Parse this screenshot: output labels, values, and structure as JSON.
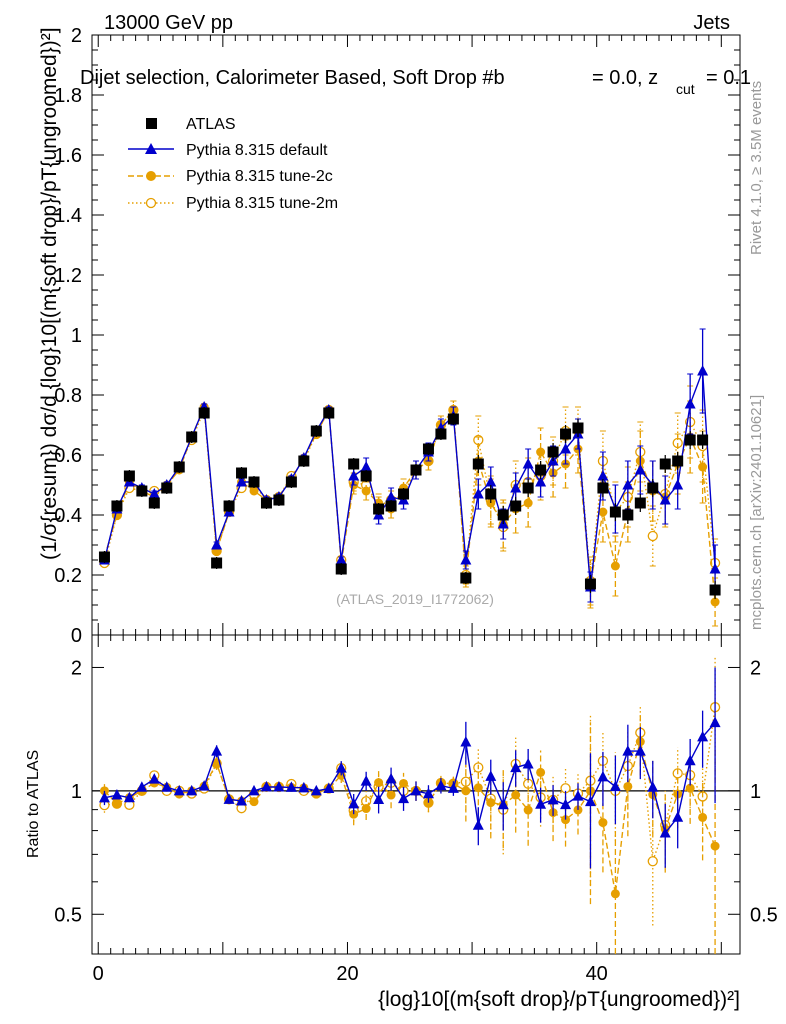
{
  "header": {
    "energy": "13000 GeV pp",
    "process": "Jets",
    "selection": "Dijet selection, Calorimeter Based, Soft Drop #b",
    "beta": "= 0.0, z",
    "cut": "cut",
    "zcut_value": "= 0.1"
  },
  "side": {
    "rivet": "Rivet 4.1.0, ≥ 3.5M events",
    "mcplots": "mcplots.cern.ch [arXiv:2401.10621]"
  },
  "watermark": "(ATLAS_2019_I1772062)",
  "ylabel_top": "(1/σ{resum}) dσ/d {log}10[(m{soft drop}/pT{ungroomed})²]",
  "ylabel_bottom": "Ratio to ATLAS",
  "xlabel": "{log}10[(m{soft drop}/pT{ungroomed})²]",
  "colors": {
    "atlas": "#000000",
    "default": "#0000cc",
    "tune": "#e69f00"
  },
  "chart_data": {
    "type": "scatter",
    "x": [
      0.5,
      1.5,
      2.5,
      3.5,
      4.5,
      5.5,
      6.5,
      7.5,
      8.5,
      9.5,
      10.5,
      11.5,
      12.5,
      13.5,
      14.5,
      15.5,
      16.5,
      17.5,
      18.5,
      19.5,
      20.5,
      21.5,
      22.5,
      23.5,
      24.5,
      25.5,
      26.5,
      27.5,
      28.5,
      29.5,
      30.5,
      31.5,
      32.5,
      33.5,
      34.5,
      35.5,
      36.5,
      37.5,
      38.5,
      39.5,
      40.5,
      41.5,
      42.5,
      43.5,
      44.5,
      45.5,
      46.5,
      47.5,
      48.5,
      49.5
    ],
    "xlim": [
      -0.5,
      51.5
    ],
    "xticks": [
      0,
      20,
      40
    ],
    "top_ylim": [
      0,
      2
    ],
    "top_yticks": [
      0,
      0.2,
      0.4,
      0.6,
      0.8,
      1,
      1.2,
      1.4,
      1.6,
      1.8,
      2
    ],
    "top_ytick_labels": [
      "0",
      "0.2",
      "0.4",
      "0.6",
      "0.8",
      "1",
      "1.2",
      "1.4",
      "1.6",
      "1.8",
      "2"
    ],
    "ratio_ylim": [
      0.4,
      2.4
    ],
    "ratio_yticks": [
      0.5,
      1,
      2
    ],
    "ratio_ytick_labels": [
      "0.5",
      "1",
      "2"
    ],
    "series": [
      {
        "name": "ATLAS",
        "key": "atlas",
        "values": [
          0.26,
          0.43,
          0.53,
          0.48,
          0.44,
          0.49,
          0.56,
          0.66,
          0.74,
          0.24,
          0.43,
          0.54,
          0.51,
          0.44,
          0.45,
          0.51,
          0.58,
          0.68,
          0.74,
          0.22,
          0.57,
          0.53,
          0.42,
          0.43,
          0.47,
          0.55,
          0.62,
          0.67,
          0.72,
          0.19,
          0.57,
          0.47,
          0.4,
          0.43,
          0.49,
          0.55,
          0.61,
          0.67,
          0.69,
          0.17,
          0.49,
          0.41,
          0.4,
          0.44,
          0.49,
          0.57,
          0.58,
          0.65,
          0.65,
          0.15
        ],
        "errors": [
          0.02,
          0.02,
          0.02,
          0.02,
          0.02,
          0.02,
          0.02,
          0.02,
          0.02,
          0.02,
          0.02,
          0.02,
          0.02,
          0.02,
          0.02,
          0.02,
          0.02,
          0.02,
          0.02,
          0.02,
          0.02,
          0.02,
          0.02,
          0.02,
          0.02,
          0.02,
          0.02,
          0.02,
          0.02,
          0.02,
          0.03,
          0.03,
          0.03,
          0.03,
          0.03,
          0.03,
          0.03,
          0.03,
          0.03,
          0.03,
          0.03,
          0.03,
          0.03,
          0.03,
          0.03,
          0.03,
          0.03,
          0.03,
          0.03,
          0.03
        ]
      },
      {
        "name": "Pythia 8.315 default",
        "key": "default",
        "values": [
          0.25,
          0.42,
          0.51,
          0.49,
          0.47,
          0.5,
          0.56,
          0.66,
          0.76,
          0.3,
          0.41,
          0.51,
          0.51,
          0.45,
          0.46,
          0.52,
          0.59,
          0.68,
          0.75,
          0.25,
          0.53,
          0.56,
          0.4,
          0.46,
          0.45,
          0.55,
          0.61,
          0.69,
          0.73,
          0.25,
          0.47,
          0.51,
          0.37,
          0.49,
          0.57,
          0.51,
          0.58,
          0.62,
          0.67,
          0.16,
          0.53,
          0.42,
          0.5,
          0.55,
          0.5,
          0.45,
          0.5,
          0.77,
          0.88,
          0.22
        ],
        "errors": [
          0.01,
          0.01,
          0.01,
          0.01,
          0.01,
          0.01,
          0.01,
          0.01,
          0.01,
          0.01,
          0.01,
          0.01,
          0.01,
          0.01,
          0.01,
          0.01,
          0.01,
          0.01,
          0.01,
          0.01,
          0.03,
          0.03,
          0.03,
          0.03,
          0.03,
          0.03,
          0.03,
          0.03,
          0.03,
          0.03,
          0.05,
          0.05,
          0.05,
          0.05,
          0.05,
          0.05,
          0.05,
          0.05,
          0.05,
          0.05,
          0.08,
          0.08,
          0.08,
          0.08,
          0.08,
          0.08,
          0.08,
          0.1,
          0.14,
          0.08
        ]
      },
      {
        "name": "Pythia 8.315 tune-2c",
        "key": "tune2c",
        "values": [
          0.26,
          0.4,
          0.51,
          0.48,
          0.46,
          0.5,
          0.55,
          0.66,
          0.76,
          0.28,
          0.41,
          0.51,
          0.48,
          0.45,
          0.46,
          0.52,
          0.59,
          0.67,
          0.75,
          0.24,
          0.5,
          0.48,
          0.44,
          0.42,
          0.49,
          0.55,
          0.58,
          0.7,
          0.75,
          0.19,
          0.58,
          0.44,
          0.37,
          0.42,
          0.44,
          0.61,
          0.54,
          0.57,
          0.62,
          0.17,
          0.41,
          0.23,
          0.41,
          0.58,
          0.48,
          0.46,
          0.57,
          0.66,
          0.56,
          0.11
        ],
        "errors": [
          0.01,
          0.01,
          0.01,
          0.01,
          0.01,
          0.01,
          0.01,
          0.01,
          0.01,
          0.01,
          0.01,
          0.01,
          0.01,
          0.01,
          0.01,
          0.01,
          0.01,
          0.01,
          0.01,
          0.01,
          0.03,
          0.03,
          0.03,
          0.03,
          0.03,
          0.03,
          0.03,
          0.03,
          0.03,
          0.03,
          0.08,
          0.08,
          0.08,
          0.08,
          0.08,
          0.08,
          0.08,
          0.08,
          0.08,
          0.08,
          0.1,
          0.1,
          0.1,
          0.1,
          0.1,
          0.1,
          0.1,
          0.12,
          0.12,
          0.08
        ]
      },
      {
        "name": "Pythia 8.315 tune-2m",
        "key": "tune2m",
        "values": [
          0.24,
          0.4,
          0.49,
          0.48,
          0.48,
          0.49,
          0.56,
          0.65,
          0.75,
          0.28,
          0.41,
          0.49,
          0.5,
          0.45,
          0.46,
          0.53,
          0.58,
          0.67,
          0.75,
          0.25,
          0.51,
          0.5,
          0.43,
          0.45,
          0.47,
          0.55,
          0.58,
          0.7,
          0.75,
          0.2,
          0.65,
          0.45,
          0.36,
          0.5,
          0.51,
          0.53,
          0.58,
          0.68,
          0.68,
          0.18,
          0.58,
          0.41,
          0.46,
          0.61,
          0.33,
          0.47,
          0.64,
          0.71,
          0.63,
          0.24
        ],
        "errors": [
          0.01,
          0.01,
          0.01,
          0.01,
          0.01,
          0.01,
          0.01,
          0.01,
          0.01,
          0.01,
          0.01,
          0.01,
          0.01,
          0.01,
          0.01,
          0.01,
          0.01,
          0.01,
          0.01,
          0.01,
          0.03,
          0.03,
          0.03,
          0.03,
          0.03,
          0.03,
          0.03,
          0.03,
          0.03,
          0.03,
          0.08,
          0.08,
          0.08,
          0.08,
          0.08,
          0.08,
          0.08,
          0.08,
          0.08,
          0.08,
          0.1,
          0.1,
          0.1,
          0.1,
          0.1,
          0.1,
          0.1,
          0.12,
          0.12,
          0.08
        ]
      }
    ]
  }
}
